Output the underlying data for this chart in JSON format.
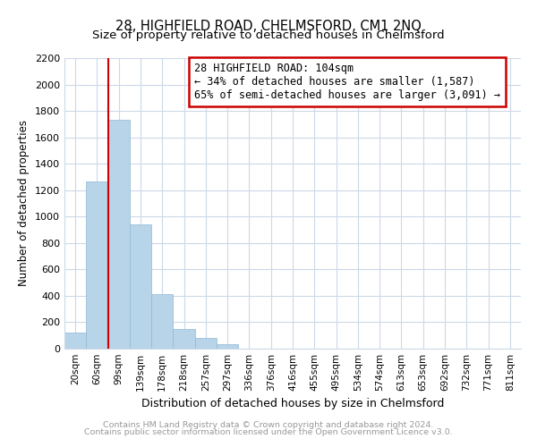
{
  "title1": "28, HIGHFIELD ROAD, CHELMSFORD, CM1 2NQ",
  "title2": "Size of property relative to detached houses in Chelmsford",
  "xlabel": "Distribution of detached houses by size in Chelmsford",
  "ylabel": "Number of detached properties",
  "categories": [
    "20sqm",
    "60sqm",
    "99sqm",
    "139sqm",
    "178sqm",
    "218sqm",
    "257sqm",
    "297sqm",
    "336sqm",
    "376sqm",
    "416sqm",
    "455sqm",
    "495sqm",
    "534sqm",
    "574sqm",
    "613sqm",
    "653sqm",
    "692sqm",
    "732sqm",
    "771sqm",
    "811sqm"
  ],
  "values": [
    120,
    1265,
    1735,
    940,
    415,
    150,
    80,
    35,
    0,
    0,
    0,
    0,
    0,
    0,
    0,
    0,
    0,
    0,
    0,
    0,
    0
  ],
  "bar_color": "#b8d4e8",
  "bar_edge_color": "#90b8d4",
  "vline_color": "#cc0000",
  "annotation_title": "28 HIGHFIELD ROAD: 104sqm",
  "annotation_line1": "← 34% of detached houses are smaller (1,587)",
  "annotation_line2": "65% of semi-detached houses are larger (3,091) →",
  "annotation_box_color": "white",
  "annotation_box_edge": "#cc0000",
  "ylim": [
    0,
    2200
  ],
  "yticks": [
    0,
    200,
    400,
    600,
    800,
    1000,
    1200,
    1400,
    1600,
    1800,
    2000,
    2200
  ],
  "footer1": "Contains HM Land Registry data © Crown copyright and database right 2024.",
  "footer2": "Contains public sector information licensed under the Open Government Licence v3.0.",
  "bg_color": "#ffffff",
  "grid_color": "#ccd9e8",
  "title_fontsize": 10.5,
  "subtitle_fontsize": 9.5,
  "footer_color": "#999999"
}
